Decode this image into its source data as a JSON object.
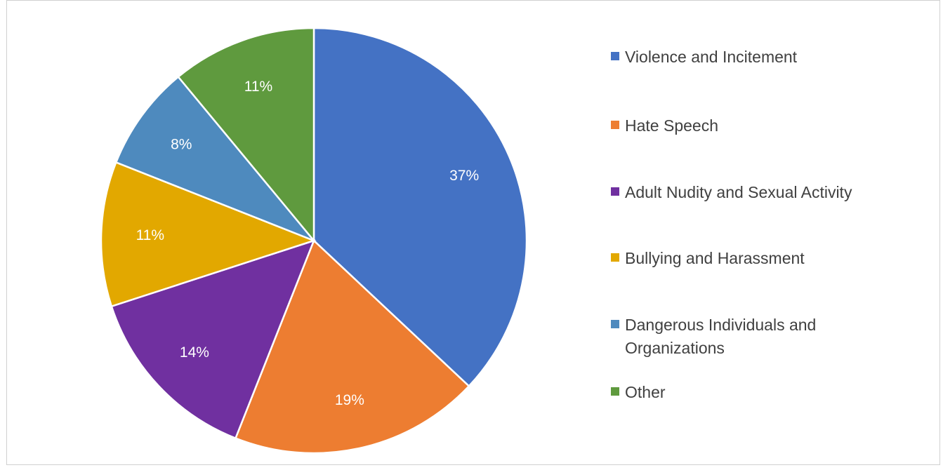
{
  "chart_data": {
    "type": "pie",
    "title": "",
    "legend_position": "right",
    "slices": [
      {
        "label": "Violence and Incitement",
        "value": 37,
        "display": "37%",
        "color": "#4472C4"
      },
      {
        "label": "Hate Speech",
        "value": 19,
        "display": "19%",
        "color": "#ED7D31"
      },
      {
        "label": "Adult Nudity and Sexual Activity",
        "value": 14,
        "display": "14%",
        "color": "#7030A0"
      },
      {
        "label": "Bullying and Harassment",
        "value": 11,
        "display": "11%",
        "color": "#E2A800"
      },
      {
        "label": "Dangerous Individuals and Organizations",
        "value": 8,
        "display": "8%",
        "color": "#4E8ABE"
      },
      {
        "label": "Other",
        "value": 11,
        "display": "11%",
        "color": "#5F9A3E"
      }
    ]
  }
}
